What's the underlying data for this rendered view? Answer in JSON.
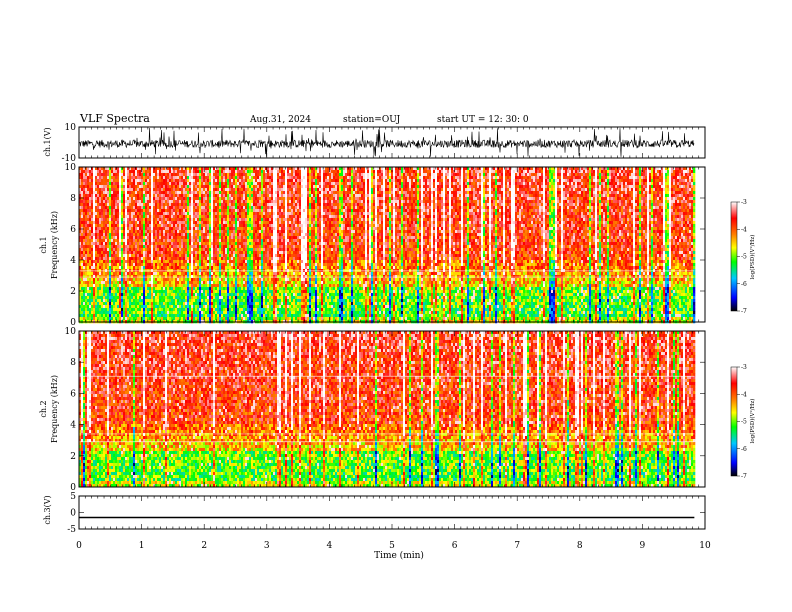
{
  "header": {
    "title": "VLF Spectra",
    "date": "Aug.31, 2024",
    "station": "station=OUJ",
    "start": "start  UT  =   12: 30: 0"
  },
  "chart_data": [
    {
      "type": "line",
      "name": "ch1-waveform",
      "ylabel": "ch.1(V)",
      "ylim": [
        -10,
        10
      ],
      "yticks": [
        "10",
        "-10"
      ],
      "x_range_min": [
        0,
        9.83
      ],
      "line_color": "#000000"
    },
    {
      "type": "heatmap",
      "name": "ch1-spectrogram",
      "ylabel": "ch.1\nFrequency  (kHz)",
      "ylabel_top": "ch.1",
      "ylabel_bottom": "Frequency  (kHz)",
      "ylim": [
        0,
        10
      ],
      "yticks": [
        "0",
        "2",
        "4",
        "6",
        "8",
        "10"
      ],
      "x_range_min": [
        0,
        9.83
      ],
      "colorbar": {
        "label": "log(PSD)(V²/Hz)",
        "range": [
          -7,
          -3
        ],
        "ticks": [
          "-3",
          "-4",
          "-5",
          "-6",
          "-7"
        ],
        "colors": [
          "#000000",
          "#0000ff",
          "#00c8ff",
          "#00ff00",
          "#ffff00",
          "#ff8000",
          "#ff0000",
          "#ffffff"
        ]
      },
      "noted_horizontal_lines_khz": [
        2.9,
        3.3
      ]
    },
    {
      "type": "heatmap",
      "name": "ch2-spectrogram",
      "ylabel_top": "ch.2",
      "ylabel_bottom": "Frequency  (kHz)",
      "ylim": [
        0,
        10
      ],
      "yticks": [
        "0",
        "2",
        "4",
        "6",
        "8",
        "10"
      ],
      "x_range_min": [
        0,
        9.83
      ],
      "colorbar": {
        "label": "log(PSD)(V²/Hz)",
        "range": [
          -7,
          -3
        ],
        "ticks": [
          "-3",
          "-4",
          "-5",
          "-6",
          "-7"
        ],
        "colors": [
          "#000000",
          "#0000ff",
          "#00c8ff",
          "#00ff00",
          "#ffff00",
          "#ff8000",
          "#ff0000",
          "#ffffff"
        ]
      },
      "noted_horizontal_lines_khz": [
        2.9,
        3.4,
        7.1
      ]
    },
    {
      "type": "line",
      "name": "ch3-waveform",
      "ylabel": "ch.3(V)",
      "ylim": [
        -5,
        5
      ],
      "yticks": [
        "5",
        "0",
        "-5"
      ],
      "x_range_min": [
        0,
        9.83
      ],
      "values_constant": -1.5,
      "line_color": "#000000"
    }
  ],
  "xaxis": {
    "label": "Time  (min)",
    "ticks": [
      "0",
      "1",
      "2",
      "3",
      "4",
      "5",
      "6",
      "7",
      "8",
      "9",
      "10"
    ],
    "range": [
      0,
      10
    ]
  }
}
